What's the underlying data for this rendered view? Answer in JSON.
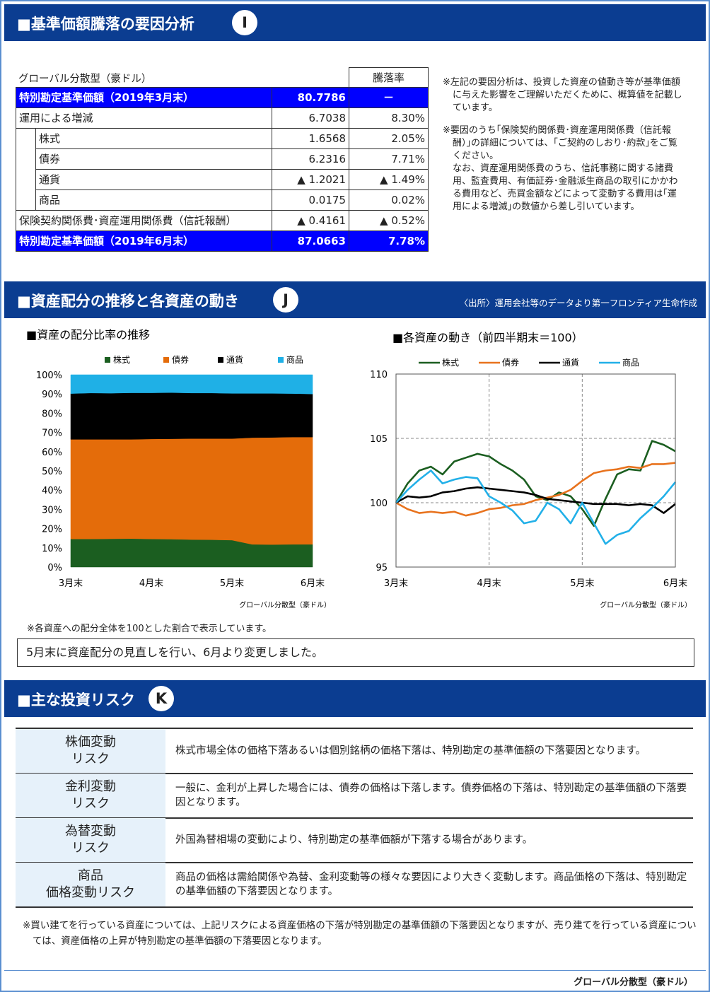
{
  "section_i": {
    "title": "■基準価額騰落の要因分析",
    "badge": "I",
    "table": {
      "caption": "グローバル分散型（豪ドル）",
      "header": "騰落率",
      "rows": [
        {
          "label": "特別勘定基準価額（2019年3月末）",
          "value": "80.7786",
          "rate": "－"
        },
        {
          "label": "運用による増減",
          "value": "6.7038",
          "rate": "8.30%"
        },
        {
          "label": "株式",
          "value": "1.6568",
          "rate": "2.05%"
        },
        {
          "label": "債券",
          "value": "6.2316",
          "rate": "7.71%"
        },
        {
          "label": "通貨",
          "value": "▲ 1.2021",
          "rate": "▲ 1.49%"
        },
        {
          "label": "商品",
          "value": "0.0175",
          "rate": "0.02%"
        },
        {
          "label": "保険契約関係費･資産運用関係費（信託報酬）",
          "value": "▲ 0.4161",
          "rate": "▲ 0.52%"
        },
        {
          "label": "特別勘定基準価額（2019年6月末）",
          "value": "87.0663",
          "rate": "7.78%"
        }
      ]
    },
    "notes": [
      "※左記の要因分析は、投資した資産の値動き等が基準価額に与えた影響をご理解いただくために、概算値を記載しています。",
      "※要因のうち｢保険契約関係費･資産運用関係費（信託報酬）｣の詳細については、｢ご契約のしおり･約款｣をご覧ください。",
      "なお、資産運用関係費のうち、信託事務に関する諸費用、監査費用、有価証券･金融派生商品の取引にかかわる費用など、売買金額などによって変動する費用は｢運用による増減｣の数値から差し引いています。"
    ]
  },
  "section_j": {
    "title": "■資産配分の推移と各資産の動き",
    "badge": "J",
    "source": "〈出所〉運用会社等のデータより第一フロンティア生命作成",
    "footnote": "※各資産への配分全体を100とした割合で表示しています。",
    "box": "5月末に資産配分の見直しを行い、6月より変更しました。"
  },
  "chart_data": [
    {
      "type": "area",
      "stacked": true,
      "title": "■資産の配分比率の推移",
      "note": "グローバル分散型（豪ドル）",
      "categories": [
        "3月末",
        null,
        null,
        null,
        "4月末",
        null,
        null,
        null,
        "5月末",
        null,
        null,
        null,
        "6月末"
      ],
      "series": [
        {
          "name": "株式",
          "color": "#1b5e20",
          "values": [
            14.6,
            14.6,
            14.7,
            14.8,
            14.6,
            14.5,
            14.3,
            14.2,
            14.0,
            11.8,
            11.7,
            11.8,
            11.8
          ]
        },
        {
          "name": "債券",
          "color": "#e46c0a",
          "values": [
            51.8,
            51.8,
            51.7,
            51.6,
            52.0,
            52.2,
            52.5,
            52.6,
            52.8,
            55.5,
            55.7,
            55.8,
            55.8
          ]
        },
        {
          "name": "通貨",
          "color": "#000000",
          "values": [
            23.8,
            24.1,
            24.0,
            24.2,
            24.0,
            24.0,
            23.7,
            23.7,
            23.5,
            23.0,
            22.9,
            22.6,
            22.4
          ]
        },
        {
          "name": "商品",
          "color": "#1fb0e6",
          "values": [
            9.8,
            9.5,
            9.6,
            9.4,
            9.4,
            9.3,
            9.5,
            9.5,
            9.7,
            9.7,
            9.7,
            9.8,
            10.0
          ]
        }
      ],
      "ylim": [
        0,
        100
      ],
      "yticks": [
        {
          "value": 0,
          "label": "0%"
        },
        {
          "value": 10,
          "label": "10%"
        },
        {
          "value": 20,
          "label": "20%"
        },
        {
          "value": 30,
          "label": "30%"
        },
        {
          "value": 40,
          "label": "40%"
        },
        {
          "value": 50,
          "label": "50%"
        },
        {
          "value": 60,
          "label": "60%"
        },
        {
          "value": 70,
          "label": "70%"
        },
        {
          "value": 80,
          "label": "80%"
        },
        {
          "value": 90,
          "label": "90%"
        },
        {
          "value": 100,
          "label": "100%"
        }
      ]
    },
    {
      "type": "line",
      "title": "■各資産の動き（前四半期末＝100）",
      "note": "グローバル分散型（豪ドル）",
      "grid": true,
      "categories": [
        "3月末",
        null,
        null,
        null,
        null,
        null,
        null,
        null,
        "4月末",
        null,
        null,
        null,
        null,
        null,
        null,
        null,
        "5月末",
        null,
        null,
        null,
        null,
        null,
        null,
        null,
        "6月末"
      ],
      "series": [
        {
          "name": "株式",
          "color": "#1b5e20",
          "values": [
            100,
            101.5,
            102.5,
            102.8,
            102.2,
            103.2,
            103.5,
            103.8,
            103.6,
            103.0,
            102.5,
            101.8,
            100.5,
            100.2,
            100.8,
            100.5,
            99.5,
            98.2,
            100.3,
            102.2,
            102.6,
            102.5,
            104.8,
            104.5,
            104.0
          ]
        },
        {
          "name": "債券",
          "color": "#e8731e",
          "values": [
            100,
            99.5,
            99.2,
            99.3,
            99.2,
            99.3,
            99.0,
            99.2,
            99.5,
            99.6,
            99.8,
            99.9,
            100.2,
            100.4,
            100.6,
            101.0,
            101.7,
            102.3,
            102.5,
            102.6,
            102.8,
            102.7,
            103.0,
            103.0,
            103.1
          ]
        },
        {
          "name": "通貨",
          "color": "#000000",
          "values": [
            100,
            100.5,
            100.4,
            100.5,
            100.8,
            100.9,
            101.1,
            101.2,
            101.1,
            101.0,
            100.9,
            100.8,
            100.6,
            100.3,
            100.2,
            100.1,
            100.0,
            99.9,
            99.9,
            99.9,
            99.8,
            99.9,
            99.8,
            99.2,
            99.9
          ]
        },
        {
          "name": "商品",
          "color": "#22b0e8",
          "values": [
            100,
            101.0,
            101.8,
            102.5,
            101.5,
            101.8,
            102.0,
            101.9,
            100.5,
            100.0,
            99.4,
            98.4,
            98.6,
            100.0,
            99.5,
            98.4,
            100.0,
            98.4,
            96.8,
            97.5,
            97.8,
            98.8,
            99.6,
            100.5,
            101.6
          ]
        }
      ],
      "ylim": [
        95,
        110
      ],
      "yticks": [
        95,
        100,
        105,
        110
      ]
    }
  ],
  "section_k": {
    "title": "■主な投資リスク",
    "badge": "K",
    "risks": [
      {
        "name": [
          "株価変動",
          "リスク"
        ],
        "text": "株式市場全体の価格下落あるいは個別銘柄の価格下落は、特別勘定の基準価額の下落要因となります。"
      },
      {
        "name": [
          "金利変動",
          "リスク"
        ],
        "text": "一般に、金利が上昇した場合には、債券の価格は下落します。債券価格の下落は、特別勘定の基準価額の下落要因となります。"
      },
      {
        "name": [
          "為替変動",
          "リスク"
        ],
        "text": "外国為替相場の変動により、特別勘定の基準価額が下落する場合があります。"
      },
      {
        "name": [
          "商品",
          "価格変動リスク"
        ],
        "text": "商品の価格は需給関係や為替、金利変動等の様々な要因により大きく変動します。商品価格の下落は、特別勘定の基準価額の下落要因となります。"
      }
    ],
    "footnote": "※買い建てを行っている資産については、上記リスクによる資産価格の下落が特別勘定の基準価額の下落要因となりますが、売り建てを行っている資産については、資産価格の上昇が特別勘定の基準価額の下落要因となります。"
  },
  "footer": "グローバル分散型（豪ドル）"
}
